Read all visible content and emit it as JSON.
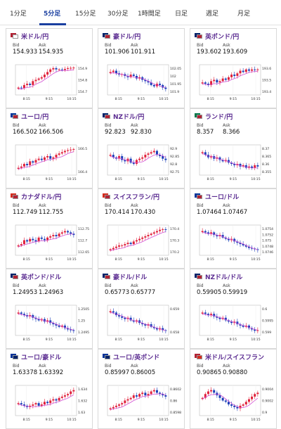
{
  "tabs": [
    {
      "label": "1分足",
      "active": false
    },
    {
      "label": "5分足",
      "active": true
    },
    {
      "label": "15分足",
      "active": false
    },
    {
      "label": "30分足",
      "active": false
    },
    {
      "label": "1時間足",
      "active": false
    },
    {
      "label": "日足",
      "active": false
    },
    {
      "label": "週足",
      "active": false
    },
    {
      "label": "月足",
      "active": false
    }
  ],
  "labels": {
    "bid": "Bid",
    "ask": "Ask"
  },
  "colors": {
    "up": "#e0203a",
    "down": "#1a3fb8",
    "ma": "#d34fd3",
    "pair_name": "#5b2c91",
    "active_tab": "#1a3fa0"
  },
  "pairs": [
    {
      "name": "米ドル/円",
      "flag": [
        "#b22234",
        "#ffffff"
      ],
      "bid": "154.933",
      "ask": "154.935",
      "chart_data": {
        "type": "candlestick",
        "x_labels": [
          "8:15",
          "9:15",
          "10:15"
        ],
        "y_ticks": [
          "154.9",
          "154.8",
          "154.7"
        ],
        "trend": [
          0.2,
          0.18,
          0.3,
          0.35,
          0.3,
          0.45,
          0.5,
          0.55,
          0.6,
          0.7,
          0.8,
          0.9,
          0.95,
          0.9,
          0.9,
          0.88,
          0.92,
          0.95,
          0.96,
          0.97
        ]
      }
    },
    {
      "name": "豪ドル/円",
      "flag": [
        "#012169",
        "#b22234"
      ],
      "bid": "101.906",
      "ask": "101.911",
      "chart_data": {
        "type": "candlestick",
        "x_labels": [
          "8:15",
          "9:15",
          "10:15"
        ],
        "y_ticks": [
          "102.05",
          "102",
          "101.95",
          "101.9"
        ],
        "trend": [
          0.8,
          0.85,
          0.75,
          0.7,
          0.72,
          0.65,
          0.6,
          0.7,
          0.65,
          0.55,
          0.6,
          0.5,
          0.45,
          0.4,
          0.3,
          0.25,
          0.35,
          0.3,
          0.2,
          0.15
        ]
      }
    },
    {
      "name": "英ポンド/円",
      "flag": [
        "#012169",
        "#b22234"
      ],
      "bid": "193.602",
      "ask": "193.609",
      "chart_data": {
        "type": "candlestick",
        "x_labels": [
          "8:15",
          "9:15",
          "10:15"
        ],
        "y_ticks": [
          "193.6",
          "193.5",
          "193.4"
        ],
        "trend": [
          0.4,
          0.35,
          0.3,
          0.45,
          0.5,
          0.4,
          0.45,
          0.55,
          0.5,
          0.6,
          0.7,
          0.65,
          0.75,
          0.85,
          0.8,
          0.9,
          0.85,
          0.9,
          0.88,
          0.9
        ]
      }
    },
    {
      "name": "ユーロ/円",
      "flag": [
        "#003399",
        "#b22234"
      ],
      "bid": "166.502",
      "ask": "166.506",
      "chart_data": {
        "type": "candlestick",
        "x_labels": [
          "8:15",
          "9:15",
          "10:15"
        ],
        "y_ticks": [
          "166.5",
          "166.4"
        ],
        "trend": [
          0.2,
          0.25,
          0.35,
          0.3,
          0.45,
          0.4,
          0.5,
          0.55,
          0.5,
          0.6,
          0.65,
          0.55,
          0.6,
          0.7,
          0.75,
          0.8,
          0.85,
          0.88,
          0.9,
          0.92
        ]
      }
    },
    {
      "name": "NZドル/円",
      "flag": [
        "#012169",
        "#b22234"
      ],
      "bid": "92.823",
      "ask": "92.830",
      "chart_data": {
        "type": "candlestick",
        "x_labels": [
          "8:15",
          "9:15",
          "10:15"
        ],
        "y_ticks": [
          "92.9",
          "92.85",
          "92.8",
          "92.75"
        ],
        "trend": [
          0.7,
          0.6,
          0.55,
          0.65,
          0.5,
          0.45,
          0.55,
          0.4,
          0.35,
          0.5,
          0.55,
          0.6,
          0.7,
          0.75,
          0.8,
          0.85,
          0.7,
          0.65,
          0.55,
          0.5
        ]
      }
    },
    {
      "name": "ランド/円",
      "flag": [
        "#007749",
        "#b22234"
      ],
      "bid": "8.357",
      "ask": "8.366",
      "chart_data": {
        "type": "candlestick",
        "x_labels": [
          "8:15",
          "9:15",
          "10:15"
        ],
        "y_ticks": [
          "8.37",
          "8.365",
          "8.36",
          "8.355"
        ],
        "trend": [
          0.8,
          0.7,
          0.6,
          0.65,
          0.55,
          0.6,
          0.5,
          0.45,
          0.5,
          0.4,
          0.35,
          0.3,
          0.35,
          0.25,
          0.3,
          0.2,
          0.25,
          0.2,
          0.3,
          0.25
        ]
      }
    },
    {
      "name": "カナダドル/円",
      "flag": [
        "#d52b1e",
        "#b22234"
      ],
      "bid": "112.749",
      "ask": "112.755",
      "chart_data": {
        "type": "candlestick",
        "x_labels": [
          "8:15",
          "9:15",
          "10:15"
        ],
        "y_ticks": [
          "112.75",
          "112.7",
          "112.65"
        ],
        "trend": [
          0.3,
          0.35,
          0.5,
          0.45,
          0.55,
          0.5,
          0.45,
          0.6,
          0.55,
          0.5,
          0.6,
          0.65,
          0.7,
          0.65,
          0.75,
          0.8,
          0.85,
          0.8,
          0.75,
          0.7
        ]
      }
    },
    {
      "name": "スイスフラン/円",
      "flag": [
        "#d52b1e",
        "#b22234"
      ],
      "bid": "170.414",
      "ask": "170.430",
      "chart_data": {
        "type": "candlestick",
        "x_labels": [
          "8:15",
          "9:15",
          "10:15"
        ],
        "y_ticks": [
          "170.4",
          "170.3",
          "170.2"
        ],
        "trend": [
          0.15,
          0.2,
          0.25,
          0.3,
          0.3,
          0.35,
          0.4,
          0.35,
          0.45,
          0.5,
          0.55,
          0.6,
          0.65,
          0.7,
          0.75,
          0.8,
          0.85,
          0.9,
          0.92,
          0.9
        ]
      }
    },
    {
      "name": "ユーロ/ドル",
      "flag": [
        "#003399",
        "#b22234"
      ],
      "bid": "1.07464",
      "ask": "1.07467",
      "chart_data": {
        "type": "candlestick",
        "x_labels": [
          "8:15",
          "9:15",
          "10:15"
        ],
        "y_ticks": [
          "1.0754",
          "1.0752",
          "1.075",
          "1.0748",
          "1.0746"
        ],
        "trend": [
          0.85,
          0.8,
          0.75,
          0.8,
          0.7,
          0.65,
          0.7,
          0.6,
          0.55,
          0.5,
          0.55,
          0.45,
          0.4,
          0.35,
          0.3,
          0.25,
          0.2,
          0.18,
          0.15,
          0.12
        ]
      }
    },
    {
      "name": "英ポンド/ドル",
      "flag": [
        "#012169",
        "#b22234"
      ],
      "bid": "1.24953",
      "ask": "1.24963",
      "chart_data": {
        "type": "candlestick",
        "x_labels": [
          "8:15",
          "9:15",
          "10:15"
        ],
        "y_ticks": [
          "1.2505",
          "1.25",
          "1.2495"
        ],
        "trend": [
          0.8,
          0.75,
          0.7,
          0.65,
          0.7,
          0.6,
          0.55,
          0.5,
          0.55,
          0.45,
          0.5,
          0.4,
          0.35,
          0.3,
          0.25,
          0.3,
          0.2,
          0.15,
          0.12,
          0.1
        ]
      }
    },
    {
      "name": "豪ドル/ドル",
      "flag": [
        "#012169",
        "#b22234"
      ],
      "bid": "0.65773",
      "ask": "0.65777",
      "chart_data": {
        "type": "candlestick",
        "x_labels": [
          "8:15",
          "9:15",
          "10:15"
        ],
        "y_ticks": [
          "0.659",
          "0.658"
        ],
        "trend": [
          0.85,
          0.8,
          0.7,
          0.65,
          0.6,
          0.55,
          0.6,
          0.5,
          0.45,
          0.5,
          0.4,
          0.35,
          0.3,
          0.35,
          0.25,
          0.2,
          0.15,
          0.2,
          0.12,
          0.1
        ]
      }
    },
    {
      "name": "NZドル/ドル",
      "flag": [
        "#012169",
        "#b22234"
      ],
      "bid": "0.59905",
      "ask": "0.59919",
      "chart_data": {
        "type": "candlestick",
        "x_labels": [
          "8:15",
          "9:15",
          "10:15"
        ],
        "y_ticks": [
          "0.6",
          "0.5995",
          "0.599"
        ],
        "trend": [
          0.8,
          0.75,
          0.7,
          0.75,
          0.65,
          0.6,
          0.55,
          0.6,
          0.5,
          0.45,
          0.4,
          0.45,
          0.35,
          0.3,
          0.25,
          0.3,
          0.2,
          0.15,
          0.1,
          0.12
        ]
      }
    },
    {
      "name": "ユーロ/豪ドル",
      "flag": [
        "#003399",
        "#012169"
      ],
      "bid": "1.63378",
      "ask": "1.63392",
      "chart_data": {
        "type": "candlestick",
        "x_labels": [
          "8:15",
          "9:15",
          "10:15"
        ],
        "y_ticks": [
          "1.634",
          "1.632",
          "1.63"
        ],
        "trend": [
          0.4,
          0.35,
          0.3,
          0.25,
          0.3,
          0.35,
          0.4,
          0.3,
          0.35,
          0.45,
          0.4,
          0.5,
          0.55,
          0.5,
          0.6,
          0.65,
          0.7,
          0.75,
          0.85,
          0.9
        ]
      }
    },
    {
      "name": "ユーロ/英ポンド",
      "flag": [
        "#003399",
        "#012169"
      ],
      "bid": "0.85997",
      "ask": "0.86005",
      "chart_data": {
        "type": "candlestick",
        "x_labels": [
          "8:15",
          "9:15",
          "10:15"
        ],
        "y_ticks": [
          "0.8602",
          "0.86",
          "0.8598"
        ],
        "trend": [
          0.2,
          0.25,
          0.3,
          0.35,
          0.4,
          0.5,
          0.55,
          0.6,
          0.7,
          0.65,
          0.75,
          0.8,
          0.7,
          0.75,
          0.85,
          0.9,
          0.8,
          0.75,
          0.7,
          0.65
        ]
      }
    },
    {
      "name": "米ドル/スイスフラン",
      "flag": [
        "#b22234",
        "#d52b1e"
      ],
      "bid": "0.90865",
      "ask": "0.90880",
      "chart_data": {
        "type": "candlestick",
        "x_labels": [
          "8:15",
          "9:15",
          "10:15"
        ],
        "y_ticks": [
          "0.9004",
          "0.9002",
          "0.9"
        ],
        "trend": [
          0.6,
          0.75,
          0.85,
          0.9,
          0.8,
          0.7,
          0.6,
          0.5,
          0.45,
          0.35,
          0.3,
          0.25,
          0.2,
          0.3,
          0.35,
          0.45,
          0.55,
          0.65,
          0.75,
          0.8
        ]
      }
    }
  ]
}
